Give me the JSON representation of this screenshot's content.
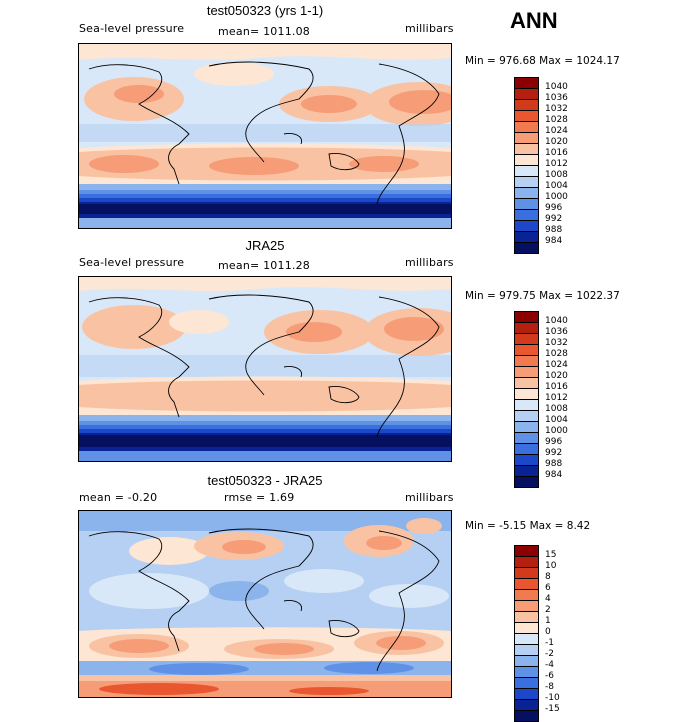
{
  "season": "ANN",
  "panels": [
    {
      "title": "test050323 (yrs 1-1)",
      "variable": "Sea-level pressure",
      "stat_label": "mean= 1011.08",
      "units": "millibars",
      "range_text": "Min = 976.68 Max = 1024.17"
    },
    {
      "title": "JRA25",
      "variable": "Sea-level pressure",
      "stat_label": "mean= 1011.28",
      "units": "millibars",
      "range_text": "Min = 979.75 Max = 1022.37"
    },
    {
      "title": "test050323 - JRA25",
      "mean_label": "mean = -0.20",
      "rmse_label": "rmse = 1.69",
      "units": "millibars",
      "range_text": "Min = -5.15 Max = 8.42"
    }
  ],
  "colorbar_abs": {
    "labels": [
      "1040",
      "1036",
      "1032",
      "1028",
      "1024",
      "1020",
      "1016",
      "1012",
      "1008",
      "1004",
      "1000",
      "996",
      "992",
      "988",
      "984"
    ],
    "colors": [
      "#8b0000",
      "#b32010",
      "#d23a1c",
      "#e8572f",
      "#f27a50",
      "#f69d78",
      "#f9c3a3",
      "#fde6d3",
      "#d9e8f8",
      "#b5d0f2",
      "#8cb4ec",
      "#5f92e6",
      "#3a6fe0",
      "#1b47c8",
      "#0a2394",
      "#051060"
    ]
  },
  "colorbar_diff": {
    "labels": [
      "15",
      "10",
      "8",
      "6",
      "4",
      "2",
      "1",
      "0",
      "-1",
      "-2",
      "-4",
      "-6",
      "-8",
      "-10",
      "-15"
    ],
    "colors": [
      "#8b0000",
      "#b32010",
      "#d23a1c",
      "#e8572f",
      "#f27a50",
      "#f69d78",
      "#f9c3a3",
      "#fde6d3",
      "#d9e8f8",
      "#b5d0f2",
      "#8cb4ec",
      "#5f92e6",
      "#3a6fe0",
      "#1b47c8",
      "#0a2394",
      "#051060"
    ]
  }
}
